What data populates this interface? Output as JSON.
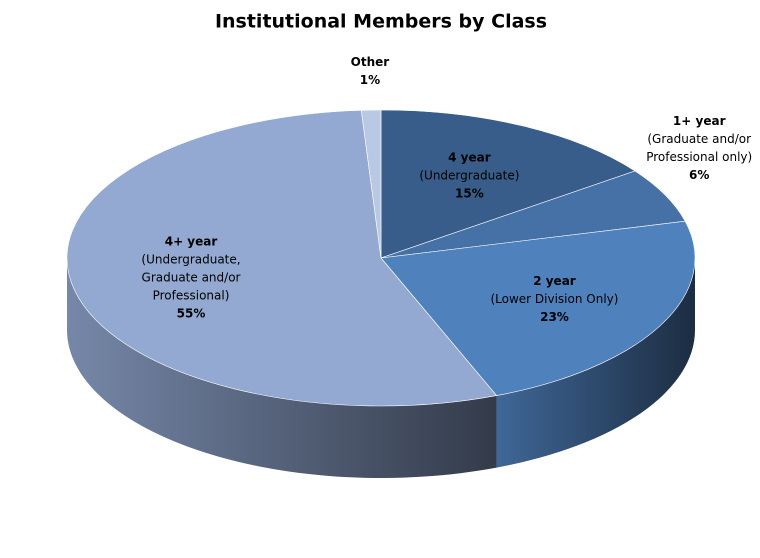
{
  "chart_data": {
    "type": "pie3d",
    "title": "Institutional Members by Class",
    "categories": [
      [
        "4 year",
        "(Undergraduate)"
      ],
      [
        "1+ year",
        "(Graduate and/or",
        "Professional only)"
      ],
      [
        "2 year",
        "(Lower Division Only)"
      ],
      [
        "4+ year",
        "(Undergraduate,",
        "Graduate and/or",
        "Professional)"
      ],
      [
        "Other"
      ]
    ],
    "values": [
      15,
      6,
      23,
      55,
      1
    ],
    "value_labels": [
      "15%",
      "6%",
      "23%",
      "55%",
      "1%"
    ],
    "colors": [
      "#385d8a",
      "#4671a6",
      "#4f81bd",
      "#93a9d2",
      "#b9c9e3"
    ]
  }
}
